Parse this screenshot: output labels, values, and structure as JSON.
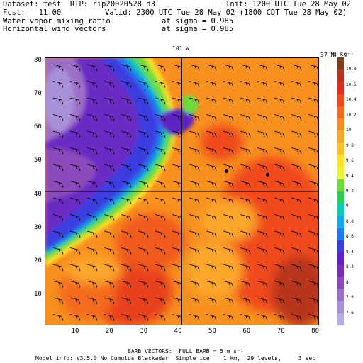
{
  "header": {
    "dataset": "Dataset: test  RIP: rip20020528 d3",
    "init": "Init: 1200 UTC Tue 28 May 02",
    "fcst": "Fcst:   11.00",
    "valid": "Valid: 2300 UTC Tue 28 May 02 (1800 CDT Tue 28 May 02)",
    "field1": "Water vapor mixing ratio",
    "field1_level": "at sigma = 0.985",
    "field2": "Horizontal wind vectors",
    "field2_level": "at sigma = 0.985"
  },
  "map": {
    "top_label": "101 W",
    "right_label": "37 N",
    "x_ticks": [
      "10",
      "20",
      "30",
      "40",
      "50",
      "60",
      "70",
      "80"
    ],
    "y_ticks": [
      "10",
      "20",
      "30",
      "40",
      "50",
      "60",
      "70",
      "80"
    ],
    "x_range": [
      1,
      81
    ],
    "y_range": [
      1,
      81
    ],
    "crosshair": {
      "x": 41,
      "y": 41
    },
    "stations": [
      {
        "x": 54,
        "y": 47
      },
      {
        "x": 66,
        "y": 46
      }
    ]
  },
  "colorbar": {
    "unit": "g kg⁻¹",
    "labels": [
      "10.8",
      "10.6",
      "10.4",
      "10.2",
      "10",
      "9.8",
      "9.6",
      "9.4",
      "9.2",
      "9",
      "8.8",
      "8.6",
      "8.4",
      "8.2",
      "8",
      "7.8",
      "7.6"
    ],
    "colors": [
      "#7a3e1c",
      "#b8341c",
      "#e0301c",
      "#f04a1c",
      "#f56a1c",
      "#f88a20",
      "#fca62a",
      "#fdc02c",
      "#fce22c",
      "#e8f23a",
      "#6cdc3a",
      "#2cd050",
      "#10c8b4",
      "#10a8f0",
      "#1e78f0",
      "#3a3ee0",
      "#5e22c4",
      "#7c2ab8",
      "#8c48bc",
      "#9c6ec8",
      "#a890d8",
      "#b8aee6"
    ]
  },
  "footer": {
    "barb_note": "BARB VECTORS:  FULL BARB = 5 m s⁻¹",
    "model_info": "Model info: V3.5.0 No Cumulus Blackadar  Simple ice    1 km,  29 levels,     3 sec"
  }
}
